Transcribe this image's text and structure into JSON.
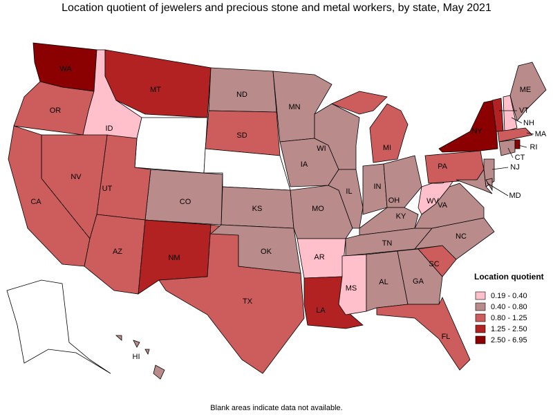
{
  "title": "Location quotient of jewelers and precious stone and metal workers, by state, May 2021",
  "note": "Blank areas indicate data not available.",
  "legend": {
    "title": "Location quotient",
    "bins": [
      {
        "label": "0.19 - 0.40",
        "color": "#ffc0cb"
      },
      {
        "label": "0.40 - 0.80",
        "color": "#b98b8b"
      },
      {
        "label": "0.80 - 1.25",
        "color": "#cd5c5c"
      },
      {
        "label": "1.25 - 2.50",
        "color": "#b22222"
      },
      {
        "label": "2.50 - 6.95",
        "color": "#8b0000"
      }
    ]
  },
  "states": [
    {
      "label": "WA",
      "class": 4
    },
    {
      "label": "OR",
      "class": 2
    },
    {
      "label": "ID",
      "class": 0
    },
    {
      "label": "MT",
      "class": 3
    },
    {
      "label": null,
      "class": null
    },
    {
      "label": "ND",
      "class": 1
    },
    {
      "label": "SD",
      "class": 2
    },
    {
      "label": null,
      "class": null
    },
    {
      "label": "KS",
      "class": 1
    },
    {
      "label": "CO",
      "class": 1
    },
    {
      "label": "UT",
      "class": 2
    },
    {
      "label": "NV",
      "class": 2
    },
    {
      "label": "CA",
      "class": 2
    },
    {
      "label": "AZ",
      "class": 2
    },
    {
      "label": "NM",
      "class": 3
    },
    {
      "label": "TX",
      "class": 2
    },
    {
      "label": "OK",
      "class": 1
    },
    {
      "label": "MN",
      "class": 1
    },
    {
      "label": "IA",
      "class": 1
    },
    {
      "label": "MO",
      "class": 1
    },
    {
      "label": "AR",
      "class": 0
    },
    {
      "label": "LA",
      "class": 3
    },
    {
      "label": "WI",
      "class": 1
    },
    {
      "label": "IL",
      "class": 1
    },
    {
      "label": "MI",
      "class": 2
    },
    {
      "label": "IN",
      "class": 1
    },
    {
      "label": "OH",
      "class": 1
    },
    {
      "label": "KY",
      "class": 1
    },
    {
      "label": "TN",
      "class": 1
    },
    {
      "label": "MS",
      "class": 0
    },
    {
      "label": "AL",
      "class": 1
    },
    {
      "label": "GA",
      "class": 1
    },
    {
      "label": "FL",
      "class": 2
    },
    {
      "label": "SC",
      "class": 2
    },
    {
      "label": "NC",
      "class": 1
    },
    {
      "label": "VA",
      "class": 1
    },
    {
      "label": "WV",
      "class": 0
    },
    {
      "label": "PA",
      "class": 2
    },
    {
      "label": "NY",
      "class": 4
    },
    {
      "label": "NJ",
      "class": 1
    },
    {
      "label": "MD",
      "class": 1
    },
    {
      "label": null,
      "class": 1
    },
    {
      "label": "VT",
      "class": 3
    },
    {
      "label": "NH",
      "class": 0
    },
    {
      "label": "ME",
      "class": 1
    },
    {
      "label": "MA",
      "class": 2
    },
    {
      "label": "CT",
      "class": 1
    },
    {
      "label": "RI",
      "class": 4
    },
    {
      "label": null,
      "class": null
    },
    {
      "label": "HI",
      "class": 1
    }
  ]
}
